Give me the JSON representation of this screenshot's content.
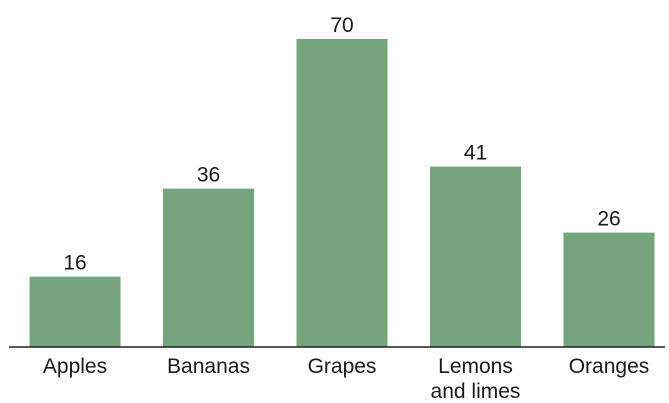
{
  "chart_data": {
    "type": "bar",
    "categories": [
      [
        "Apples"
      ],
      [
        "Bananas"
      ],
      [
        "Grapes"
      ],
      [
        "Lemons",
        "and limes"
      ],
      [
        "Oranges"
      ]
    ],
    "values": [
      16,
      36,
      70,
      41,
      26
    ],
    "colors": {
      "bar": "#77a57b",
      "axis": "#222222",
      "text": "#1a1a1a"
    },
    "title": "",
    "xlabel": "",
    "ylabel": "",
    "ylim": [
      0,
      70
    ],
    "grid": false,
    "legend": "none"
  }
}
